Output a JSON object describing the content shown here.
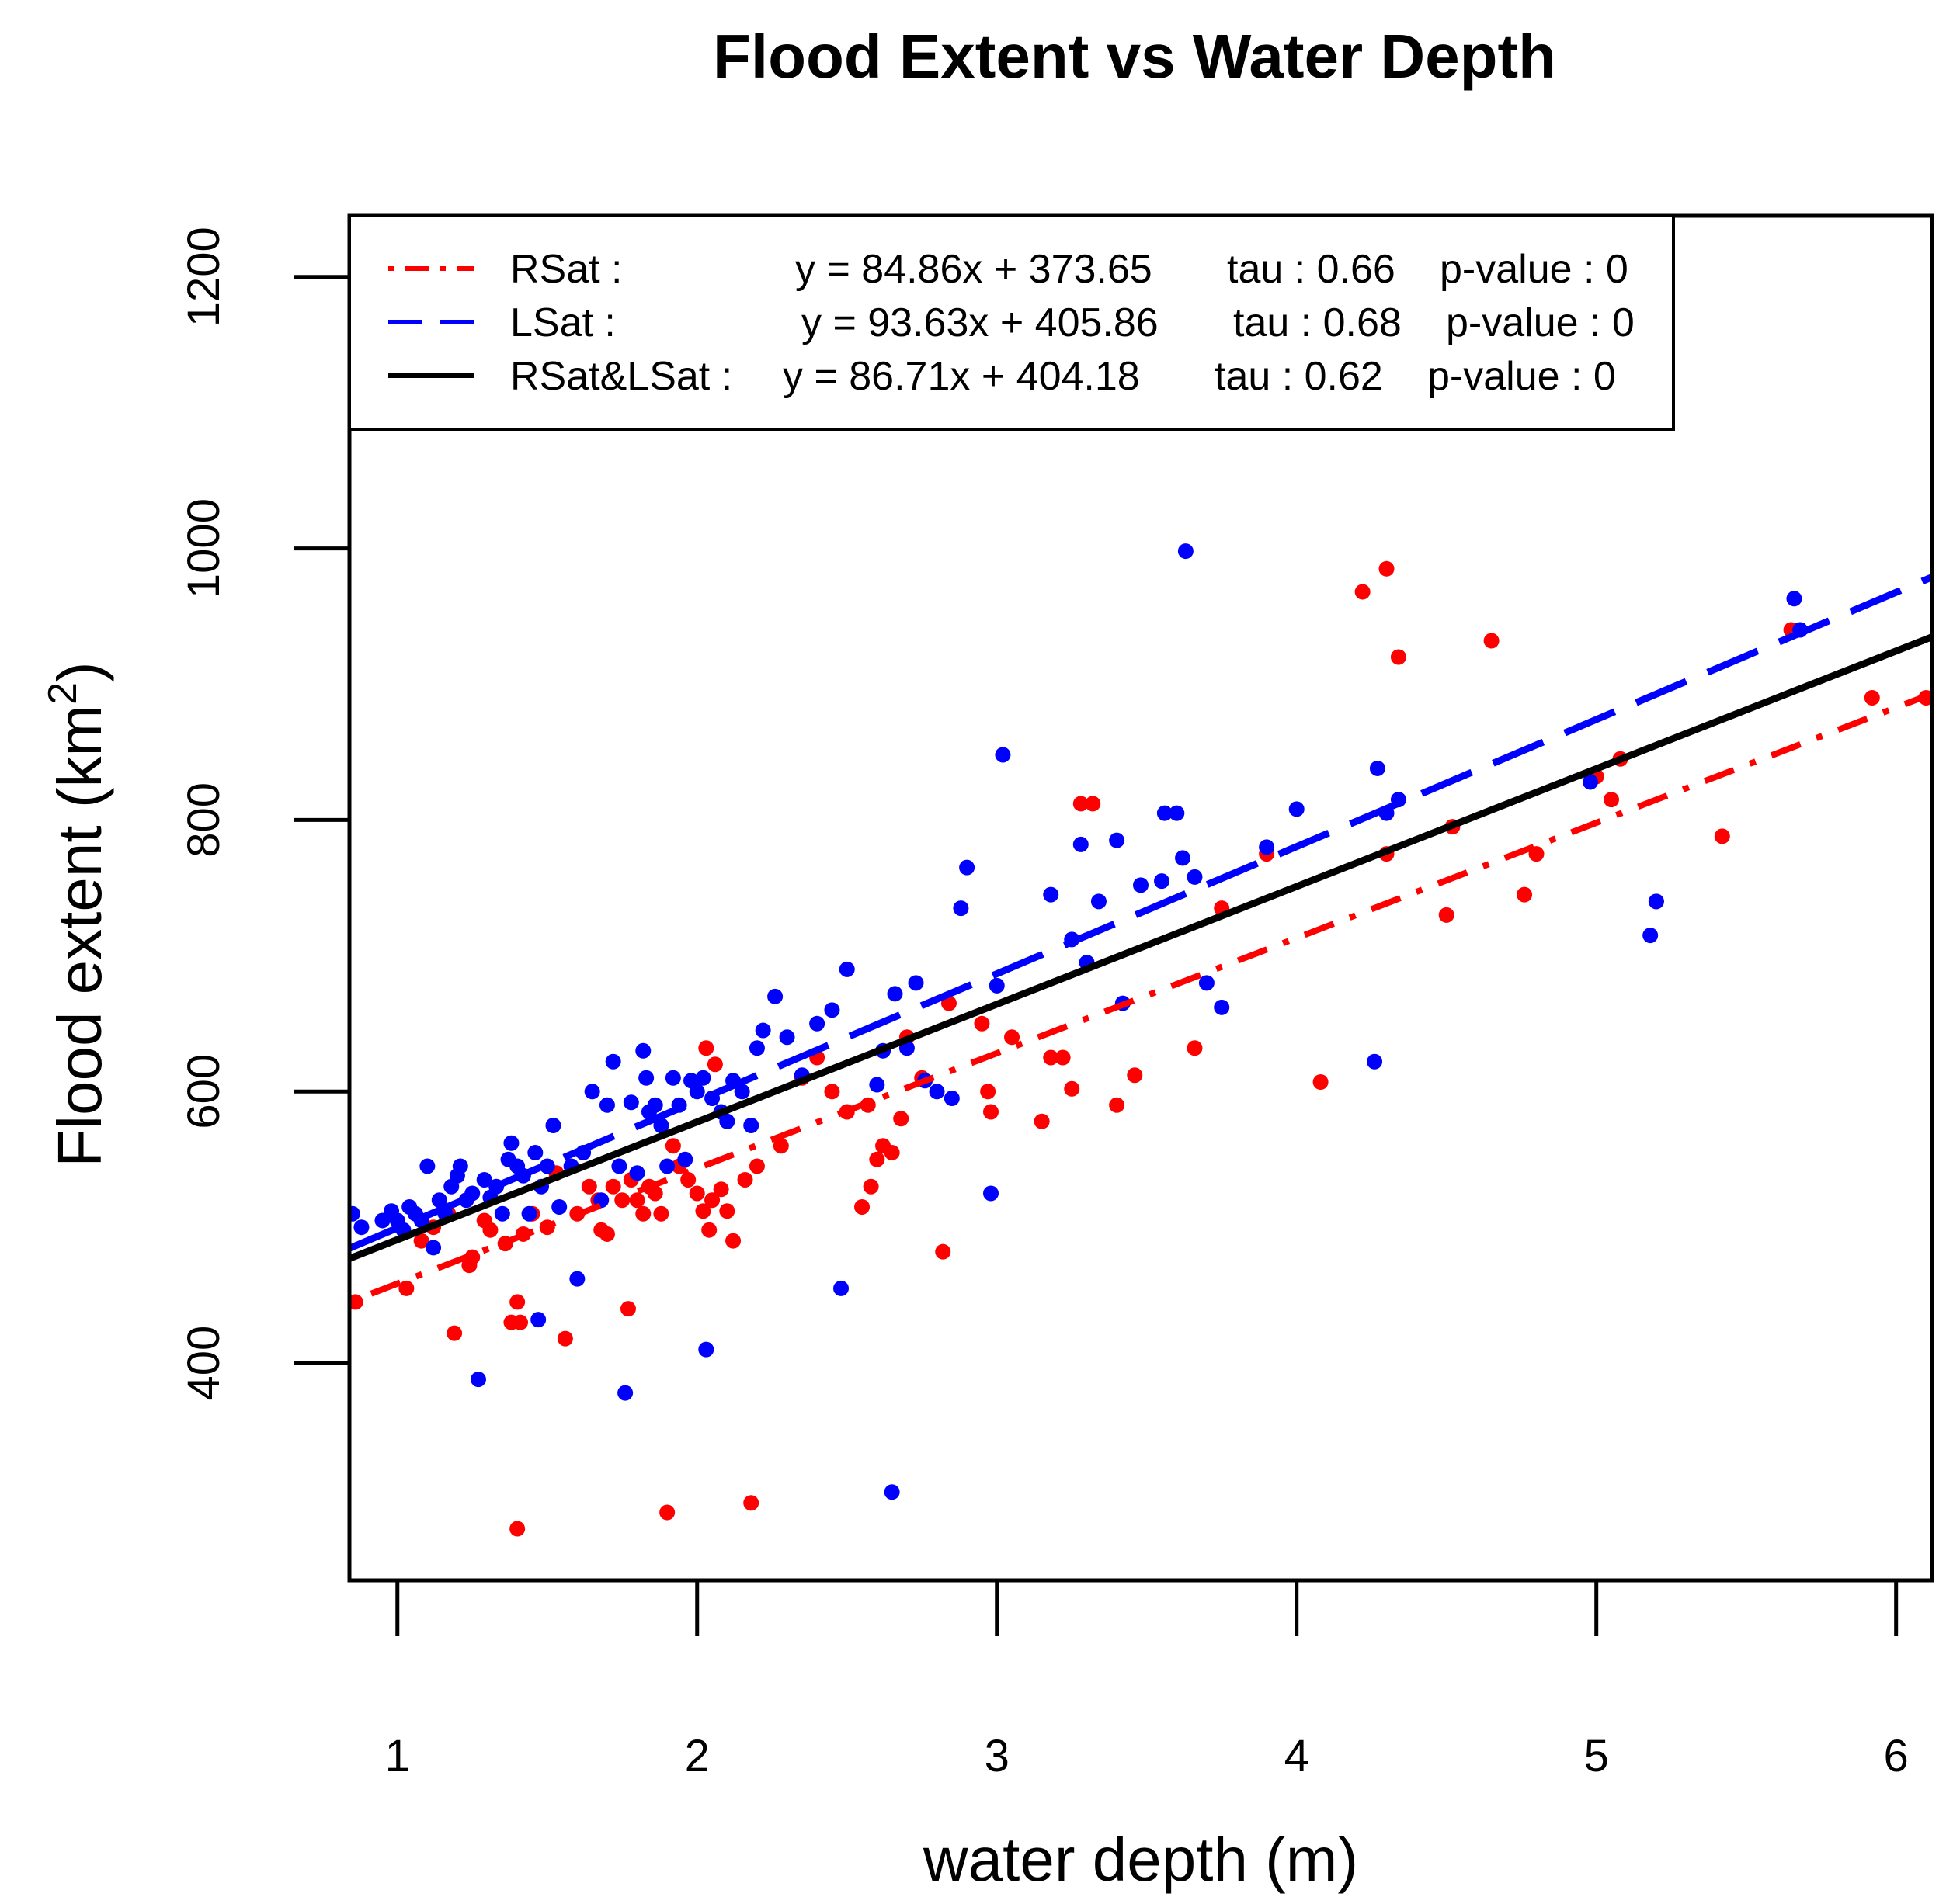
{
  "chart_data": {
    "type": "scatter",
    "title": "Flood Extent vs Water Depth",
    "xlabel": "water depth (m)",
    "ylabel_main": "Flood extent (km",
    "ylabel_sup": "2",
    "ylabel_close": ")",
    "xlim": [
      0.84,
      6.12
    ],
    "ylim": [
      240,
      1245
    ],
    "x_ticks": [
      1,
      2,
      3,
      4,
      5,
      6
    ],
    "x_tick_labels": [
      "1",
      "2",
      "3",
      "4",
      "5",
      "6"
    ],
    "y_ticks": [
      400,
      600,
      800,
      1000,
      1200
    ],
    "y_tick_labels": [
      "400",
      "600",
      "800",
      "1000",
      "1200"
    ],
    "grid": false,
    "legend_position": "top-left",
    "series": [
      {
        "name": "RSat",
        "color": "#ff0000",
        "line_style": "dotdash",
        "legend_label": "RSat :",
        "legend_equation": "y = 84.86x + 373.65",
        "legend_tau": "tau : 0.66",
        "legend_p": "p-value : 0",
        "fit": {
          "slope": 84.86,
          "intercept": 373.65
        },
        "points": [
          [
            0.86,
            445
          ],
          [
            1.03,
            455
          ],
          [
            1.08,
            490
          ],
          [
            1.12,
            500
          ],
          [
            1.17,
            510
          ],
          [
            1.19,
            422
          ],
          [
            1.24,
            472
          ],
          [
            1.25,
            478
          ],
          [
            1.29,
            505
          ],
          [
            1.31,
            498
          ],
          [
            1.36,
            488
          ],
          [
            1.38,
            430
          ],
          [
            1.4,
            445
          ],
          [
            1.4,
            278
          ],
          [
            1.41,
            430
          ],
          [
            1.42,
            495
          ],
          [
            1.45,
            510
          ],
          [
            1.5,
            500
          ],
          [
            1.53,
            540
          ],
          [
            1.56,
            418
          ],
          [
            1.6,
            510
          ],
          [
            1.64,
            530
          ],
          [
            1.67,
            520
          ],
          [
            1.68,
            498
          ],
          [
            1.7,
            495
          ],
          [
            1.72,
            530
          ],
          [
            1.75,
            520
          ],
          [
            1.77,
            440
          ],
          [
            1.78,
            535
          ],
          [
            1.8,
            520
          ],
          [
            1.82,
            510
          ],
          [
            1.84,
            530
          ],
          [
            1.86,
            525
          ],
          [
            1.88,
            510
          ],
          [
            1.9,
            290
          ],
          [
            1.92,
            560
          ],
          [
            1.94,
            545
          ],
          [
            1.97,
            535
          ],
          [
            2.0,
            525
          ],
          [
            2.02,
            512
          ],
          [
            2.03,
            632
          ],
          [
            2.04,
            498
          ],
          [
            2.05,
            520
          ],
          [
            2.06,
            620
          ],
          [
            2.08,
            528
          ],
          [
            2.1,
            512
          ],
          [
            2.12,
            490
          ],
          [
            2.16,
            535
          ],
          [
            2.18,
            297
          ],
          [
            2.2,
            545
          ],
          [
            2.28,
            560
          ],
          [
            2.35,
            610
          ],
          [
            2.4,
            625
          ],
          [
            2.45,
            600
          ],
          [
            2.5,
            585
          ],
          [
            2.55,
            515
          ],
          [
            2.57,
            590
          ],
          [
            2.58,
            530
          ],
          [
            2.6,
            550
          ],
          [
            2.62,
            560
          ],
          [
            2.65,
            555
          ],
          [
            2.68,
            580
          ],
          [
            2.7,
            640
          ],
          [
            2.75,
            610
          ],
          [
            2.82,
            482
          ],
          [
            2.84,
            665
          ],
          [
            2.95,
            650
          ],
          [
            2.97,
            600
          ],
          [
            2.98,
            585
          ],
          [
            3.05,
            640
          ],
          [
            3.15,
            578
          ],
          [
            3.18,
            625
          ],
          [
            3.22,
            625
          ],
          [
            3.25,
            602
          ],
          [
            3.28,
            812
          ],
          [
            3.32,
            812
          ],
          [
            3.4,
            590
          ],
          [
            3.46,
            612
          ],
          [
            3.66,
            632
          ],
          [
            3.75,
            735
          ],
          [
            3.9,
            775
          ],
          [
            4.08,
            607
          ],
          [
            4.22,
            968
          ],
          [
            4.3,
            985
          ],
          [
            4.3,
            775
          ],
          [
            4.34,
            920
          ],
          [
            4.5,
            730
          ],
          [
            4.52,
            795
          ],
          [
            4.65,
            932
          ],
          [
            4.76,
            745
          ],
          [
            4.8,
            775
          ],
          [
            5.0,
            832
          ],
          [
            5.05,
            815
          ],
          [
            5.08,
            845
          ],
          [
            5.2,
            740
          ],
          [
            5.42,
            788
          ],
          [
            5.65,
            940
          ],
          [
            5.92,
            890
          ],
          [
            6.1,
            890
          ]
        ]
      },
      {
        "name": "LSat",
        "color": "#0000ff",
        "line_style": "longdash",
        "legend_label": "LSat :",
        "legend_equation": "y = 93.63x + 405.86",
        "legend_tau": "tau : 0.68",
        "legend_p": "p-value : 0",
        "fit": {
          "slope": 93.63,
          "intercept": 405.86
        },
        "points": [
          [
            0.85,
            510
          ],
          [
            0.88,
            500
          ],
          [
            0.95,
            505
          ],
          [
            0.98,
            512
          ],
          [
            1.0,
            505
          ],
          [
            1.02,
            498
          ],
          [
            1.04,
            515
          ],
          [
            1.06,
            510
          ],
          [
            1.08,
            505
          ],
          [
            1.1,
            545
          ],
          [
            1.12,
            485
          ],
          [
            1.14,
            520
          ],
          [
            1.16,
            510
          ],
          [
            1.18,
            530
          ],
          [
            1.2,
            538
          ],
          [
            1.21,
            545
          ],
          [
            1.23,
            520
          ],
          [
            1.25,
            525
          ],
          [
            1.27,
            388
          ],
          [
            1.29,
            535
          ],
          [
            1.31,
            522
          ],
          [
            1.33,
            530
          ],
          [
            1.35,
            510
          ],
          [
            1.37,
            550
          ],
          [
            1.38,
            562
          ],
          [
            1.4,
            545
          ],
          [
            1.42,
            538
          ],
          [
            1.44,
            510
          ],
          [
            1.46,
            555
          ],
          [
            1.47,
            432
          ],
          [
            1.48,
            530
          ],
          [
            1.5,
            545
          ],
          [
            1.52,
            575
          ],
          [
            1.54,
            515
          ],
          [
            1.58,
            545
          ],
          [
            1.6,
            462
          ],
          [
            1.62,
            555
          ],
          [
            1.65,
            600
          ],
          [
            1.68,
            520
          ],
          [
            1.7,
            590
          ],
          [
            1.72,
            622
          ],
          [
            1.74,
            545
          ],
          [
            1.76,
            378
          ],
          [
            1.78,
            592
          ],
          [
            1.8,
            540
          ],
          [
            1.82,
            630
          ],
          [
            1.83,
            610
          ],
          [
            1.84,
            585
          ],
          [
            1.86,
            590
          ],
          [
            1.88,
            575
          ],
          [
            1.9,
            545
          ],
          [
            1.92,
            610
          ],
          [
            1.94,
            590
          ],
          [
            1.96,
            550
          ],
          [
            1.98,
            608
          ],
          [
            2.0,
            600
          ],
          [
            2.02,
            610
          ],
          [
            2.03,
            410
          ],
          [
            2.05,
            595
          ],
          [
            2.08,
            585
          ],
          [
            2.1,
            578
          ],
          [
            2.12,
            608
          ],
          [
            2.15,
            600
          ],
          [
            2.18,
            575
          ],
          [
            2.2,
            632
          ],
          [
            2.22,
            645
          ],
          [
            2.26,
            670
          ],
          [
            2.3,
            640
          ],
          [
            2.35,
            612
          ],
          [
            2.4,
            650
          ],
          [
            2.45,
            660
          ],
          [
            2.48,
            455
          ],
          [
            2.5,
            690
          ],
          [
            2.6,
            605
          ],
          [
            2.62,
            630
          ],
          [
            2.65,
            305
          ],
          [
            2.66,
            672
          ],
          [
            2.7,
            632
          ],
          [
            2.73,
            680
          ],
          [
            2.76,
            608
          ],
          [
            2.8,
            600
          ],
          [
            2.85,
            595
          ],
          [
            2.88,
            735
          ],
          [
            2.9,
            765
          ],
          [
            2.98,
            525
          ],
          [
            3.0,
            678
          ],
          [
            3.02,
            848
          ],
          [
            3.18,
            745
          ],
          [
            3.25,
            712
          ],
          [
            3.28,
            782
          ],
          [
            3.3,
            695
          ],
          [
            3.34,
            740
          ],
          [
            3.4,
            785
          ],
          [
            3.42,
            665
          ],
          [
            3.48,
            752
          ],
          [
            3.55,
            755
          ],
          [
            3.56,
            805
          ],
          [
            3.6,
            805
          ],
          [
            3.62,
            772
          ],
          [
            3.63,
            998
          ],
          [
            3.66,
            758
          ],
          [
            3.7,
            680
          ],
          [
            3.75,
            662
          ],
          [
            3.9,
            780
          ],
          [
            4.0,
            808
          ],
          [
            4.26,
            622
          ],
          [
            4.27,
            838
          ],
          [
            4.3,
            805
          ],
          [
            4.34,
            815
          ],
          [
            4.98,
            828
          ],
          [
            5.18,
            715
          ],
          [
            5.2,
            740
          ],
          [
            5.66,
            963
          ],
          [
            5.68,
            940
          ]
        ]
      },
      {
        "name": "RSat&LSat",
        "color": "#000000",
        "line_style": "solid",
        "legend_label": "RSat&LSat :",
        "legend_equation": "y = 86.71x + 404.18",
        "legend_tau": "tau : 0.62",
        "legend_p": "p-value : 0",
        "fit": {
          "slope": 86.71,
          "intercept": 404.18
        },
        "points": []
      }
    ]
  }
}
